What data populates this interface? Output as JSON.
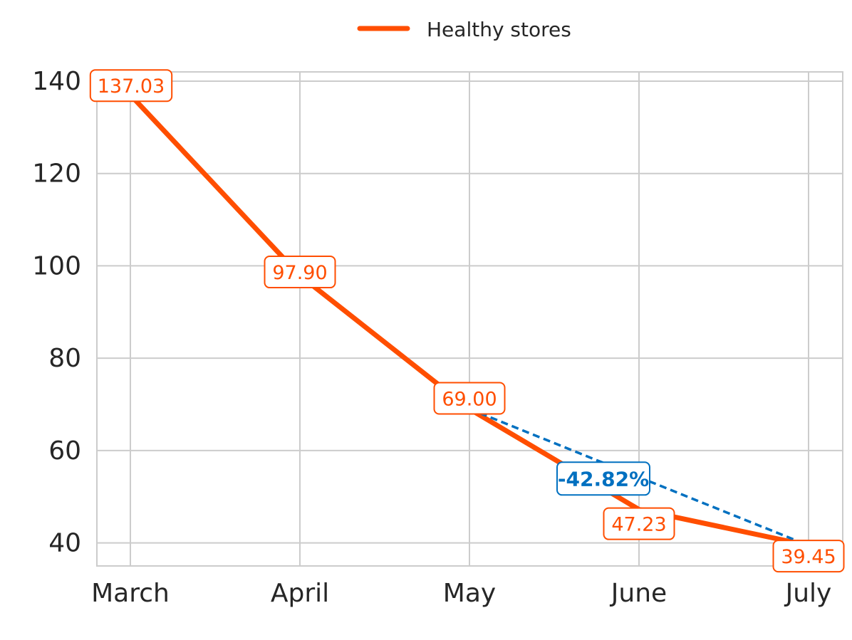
{
  "chart_data": {
    "type": "line",
    "categories": [
      "March",
      "April",
      "May",
      "June",
      "July"
    ],
    "series": [
      {
        "name": "Healthy stores",
        "values": [
          137.03,
          97.9,
          69.0,
          47.23,
          39.45
        ],
        "labels": [
          "137.03",
          "97.90",
          "69.00",
          "47.23",
          "39.45"
        ],
        "color": "#FF4E00"
      }
    ],
    "annotation": {
      "label": "-42.82%",
      "from_category": "May",
      "to_category": "July",
      "color": "#0070C0"
    },
    "yticks": [
      "40",
      "60",
      "80",
      "100",
      "120",
      "140"
    ],
    "ylim": [
      35,
      142
    ],
    "grid": true,
    "legend_position": "top-center",
    "title": "",
    "xlabel": "",
    "ylabel": ""
  }
}
